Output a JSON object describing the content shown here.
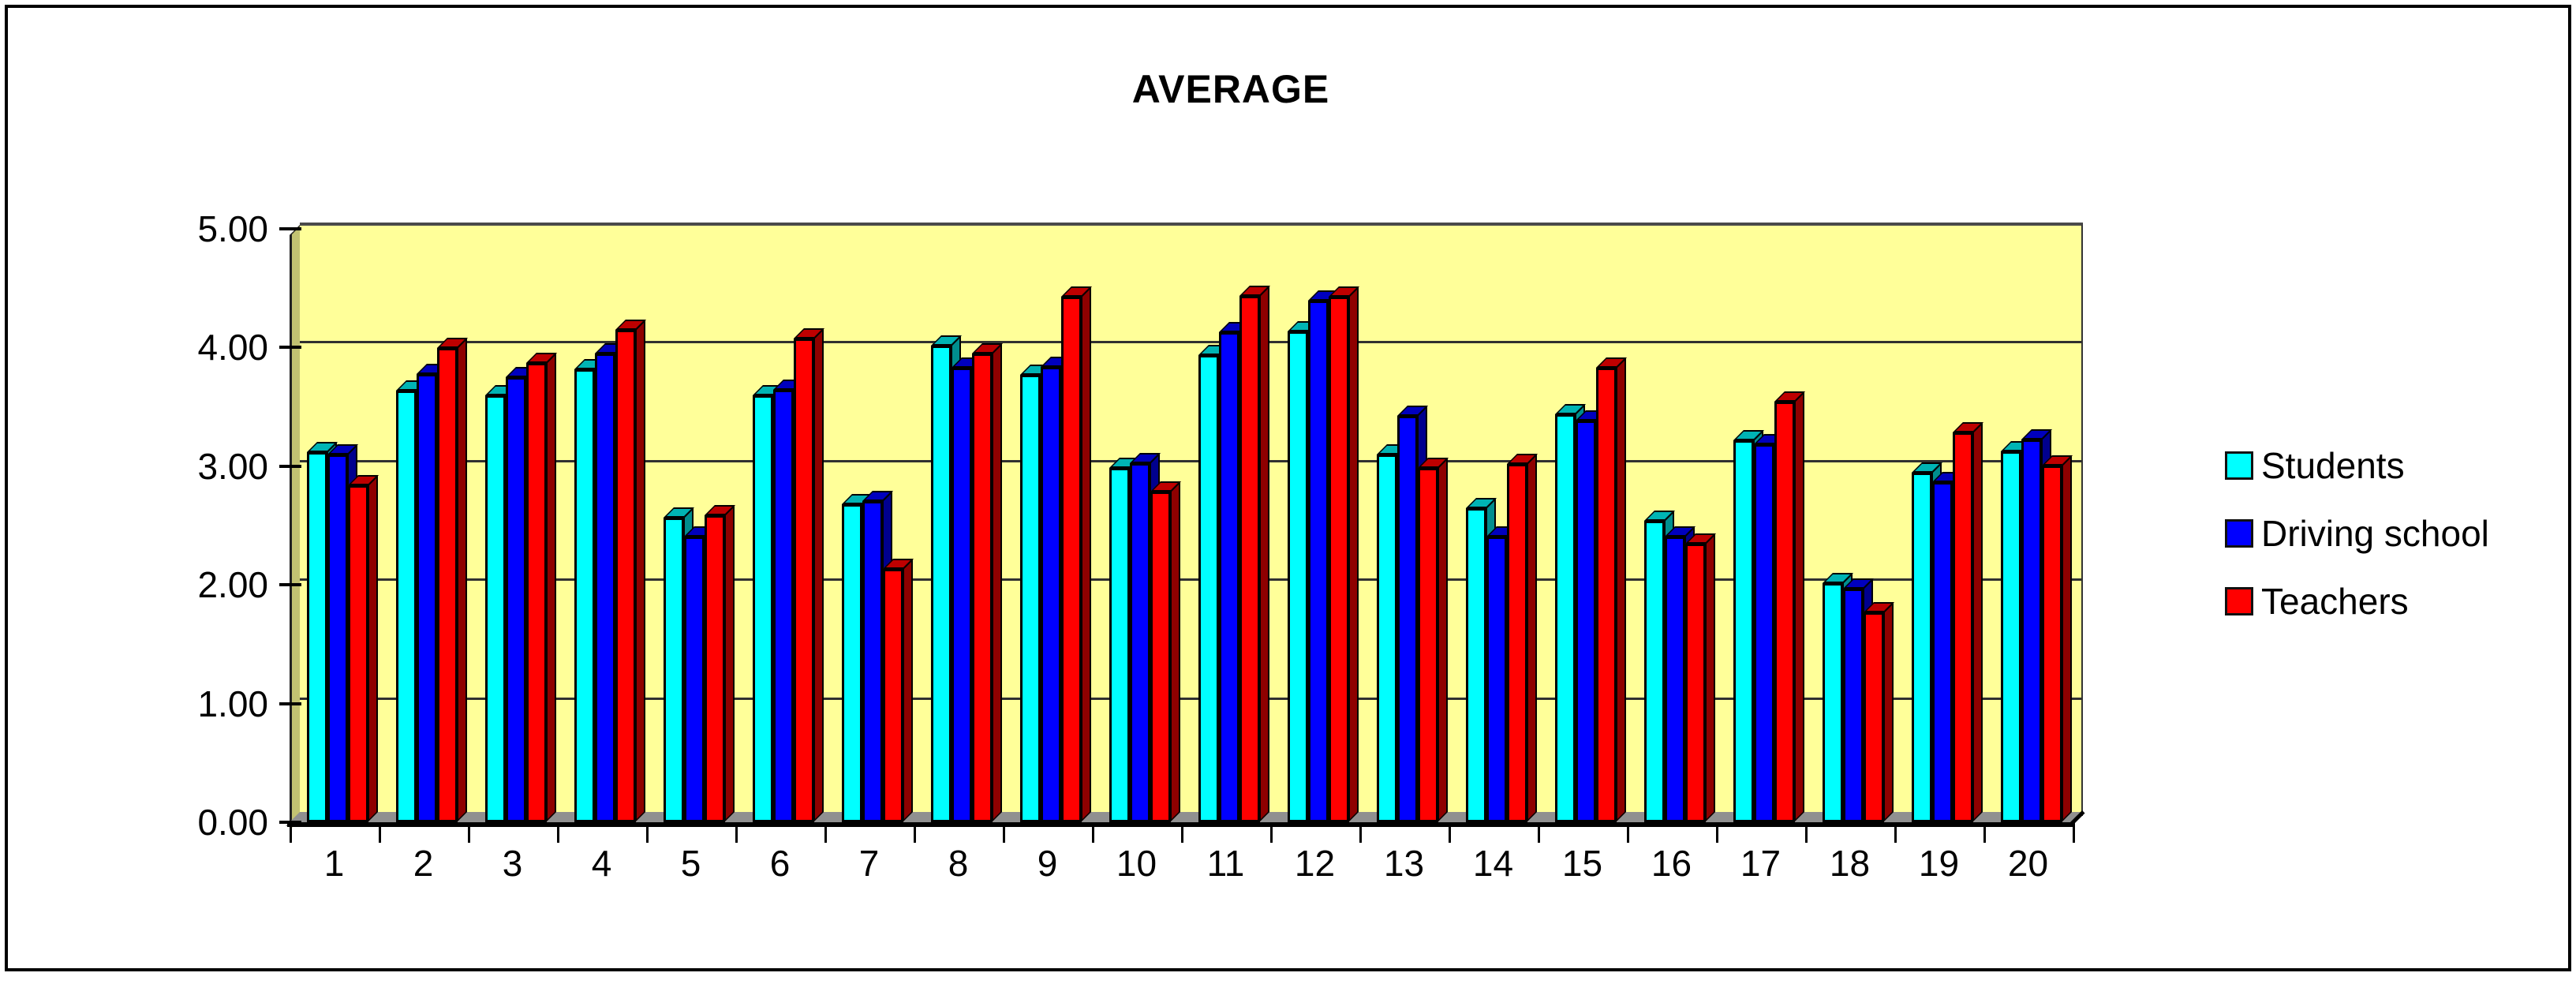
{
  "chart_data": {
    "type": "bar",
    "title": "AVERAGE",
    "subtitle": "",
    "categories": [
      "1",
      "2",
      "3",
      "4",
      "5",
      "6",
      "7",
      "8",
      "9",
      "10",
      "11",
      "12",
      "13",
      "14",
      "15",
      "16",
      "17",
      "18",
      "19",
      "20"
    ],
    "series": [
      {
        "name": "Students",
        "color": "#00FFFF",
        "color_top": "#00B4B4",
        "color_side": "#008E8E",
        "values": [
          3.15,
          3.67,
          3.63,
          3.85,
          2.6,
          3.63,
          2.71,
          4.05,
          3.8,
          3.02,
          3.97,
          4.17,
          3.13,
          2.68,
          3.47,
          2.57,
          3.25,
          2.05,
          2.98,
          3.16
        ]
      },
      {
        "name": "Driving school",
        "color": "#0000FF",
        "color_top": "#0000BE",
        "color_side": "#00008E",
        "values": [
          3.13,
          3.81,
          3.78,
          3.98,
          2.44,
          3.68,
          2.74,
          3.86,
          3.87,
          3.06,
          4.16,
          4.43,
          3.46,
          2.44,
          3.42,
          2.44,
          3.22,
          2.0,
          2.9,
          3.26
        ]
      },
      {
        "name": "Teachers",
        "color": "#FF0000",
        "color_top": "#BE0000",
        "color_side": "#8E0000",
        "values": [
          2.87,
          4.03,
          3.9,
          4.18,
          2.62,
          4.11,
          2.17,
          3.98,
          4.46,
          2.82,
          4.47,
          4.46,
          3.02,
          3.05,
          3.86,
          2.38,
          3.58,
          1.8,
          3.32,
          3.04
        ]
      }
    ],
    "y_axis": {
      "range": [
        0,
        5
      ],
      "ticks": [
        {
          "label": "5.00",
          "value": 5
        },
        {
          "label": "4.00",
          "value": 4
        },
        {
          "label": "3.00",
          "value": 3
        },
        {
          "label": "2.00",
          "value": 2
        },
        {
          "label": "1.00",
          "value": 1
        },
        {
          "label": "0.00",
          "value": 0
        }
      ]
    },
    "xlabel": "",
    "ylabel": "",
    "grid": true,
    "legend_position": "right",
    "style": "excel-3d-column",
    "colors": {
      "wall": "#FFFF99",
      "side_wall": "#C2C272",
      "floor": "#909090",
      "gridline": "#303030",
      "wall_top_edge": "#4A4A4A",
      "axis": "#000000",
      "background": "#FFFFFF",
      "border": "#000000"
    }
  }
}
